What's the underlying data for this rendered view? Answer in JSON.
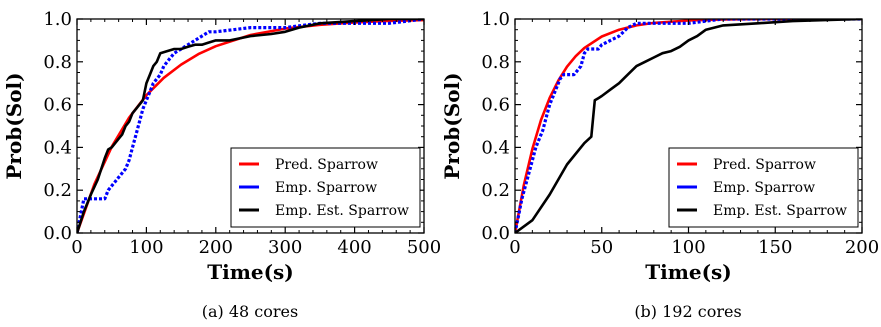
{
  "chart_data": [
    {
      "type": "line",
      "caption": "(a)  48 cores",
      "xlabel": "Time(s)",
      "ylabel": "Prob(Sol)",
      "xlim": [
        0,
        500
      ],
      "ylim": [
        0,
        1
      ],
      "xticks": [
        "0",
        "100",
        "200",
        "300",
        "400",
        "500"
      ],
      "yticks": [
        "0.0",
        "0.2",
        "0.4",
        "0.6",
        "0.8",
        "1.0"
      ],
      "legend_position": "bottom-right",
      "series": [
        {
          "name": "Pred. Sparrow",
          "color": "#ff0000",
          "style": "solid",
          "x": [
            0,
            25,
            50,
            75,
            100,
            125,
            150,
            175,
            200,
            250,
            300,
            350,
            400,
            450,
            500
          ],
          "y": [
            0,
            0.227,
            0.403,
            0.539,
            0.644,
            0.725,
            0.787,
            0.836,
            0.873,
            0.925,
            0.955,
            0.973,
            0.984,
            0.991,
            0.995
          ]
        },
        {
          "name": "Emp. Sparrow",
          "color": "#0000ff",
          "style": "dashed",
          "x": [
            0,
            10,
            15,
            40,
            45,
            50,
            55,
            60,
            65,
            70,
            75,
            80,
            85,
            90,
            95,
            100,
            105,
            110,
            115,
            120,
            125,
            130,
            135,
            140,
            150,
            160,
            170,
            180,
            190,
            200,
            250,
            300,
            350,
            400,
            450,
            500
          ],
          "y": [
            0,
            0.16,
            0.16,
            0.16,
            0.2,
            0.22,
            0.24,
            0.26,
            0.28,
            0.3,
            0.34,
            0.4,
            0.46,
            0.52,
            0.58,
            0.62,
            0.66,
            0.7,
            0.72,
            0.74,
            0.78,
            0.8,
            0.82,
            0.84,
            0.86,
            0.88,
            0.9,
            0.92,
            0.94,
            0.94,
            0.96,
            0.96,
            0.98,
            0.98,
            0.98,
            1.0
          ]
        },
        {
          "name": "Emp. Est. Sparrow",
          "color": "#000000",
          "style": "solid",
          "x": [
            0,
            10,
            20,
            30,
            40,
            45,
            50,
            55,
            60,
            65,
            70,
            75,
            80,
            85,
            90,
            95,
            100,
            105,
            110,
            115,
            120,
            130,
            140,
            150,
            160,
            170,
            180,
            190,
            200,
            220,
            250,
            280,
            300,
            320,
            350,
            400,
            450,
            500
          ],
          "y": [
            0,
            0.1,
            0.18,
            0.25,
            0.35,
            0.39,
            0.4,
            0.42,
            0.44,
            0.46,
            0.5,
            0.52,
            0.56,
            0.58,
            0.6,
            0.62,
            0.7,
            0.74,
            0.78,
            0.8,
            0.84,
            0.85,
            0.86,
            0.86,
            0.87,
            0.88,
            0.88,
            0.89,
            0.9,
            0.9,
            0.92,
            0.93,
            0.94,
            0.96,
            0.98,
            0.99,
            1.0,
            1.0
          ]
        }
      ]
    },
    {
      "type": "line",
      "caption": "(b)  192 cores",
      "xlabel": "Time(s)",
      "ylabel": "Prob(Sol)",
      "xlim": [
        0,
        200
      ],
      "ylim": [
        0,
        1
      ],
      "xticks": [
        "0",
        "50",
        "100",
        "150",
        "200"
      ],
      "yticks": [
        "0.0",
        "0.2",
        "0.4",
        "0.6",
        "0.8",
        "1.0"
      ],
      "legend_position": "bottom-right",
      "series": [
        {
          "name": "Pred. Sparrow",
          "color": "#ff0000",
          "style": "solid",
          "x": [
            0,
            5,
            10,
            15,
            20,
            25,
            30,
            35,
            40,
            50,
            60,
            70,
            80,
            100,
            120,
            150,
            200
          ],
          "y": [
            0,
            0.221,
            0.393,
            0.528,
            0.632,
            0.713,
            0.777,
            0.826,
            0.865,
            0.918,
            0.95,
            0.97,
            0.982,
            0.993,
            0.998,
            1.0,
            1.0
          ]
        },
        {
          "name": "Emp. Sparrow",
          "color": "#0000ff",
          "style": "dashed",
          "x": [
            0,
            2,
            4,
            6,
            8,
            10,
            12,
            14,
            16,
            18,
            20,
            22,
            24,
            26,
            28,
            30,
            32,
            34,
            36,
            38,
            40,
            42,
            44,
            46,
            48,
            50,
            55,
            60,
            65,
            70,
            80,
            100,
            120,
            150,
            200
          ],
          "y": [
            0,
            0.08,
            0.16,
            0.22,
            0.28,
            0.34,
            0.4,
            0.44,
            0.48,
            0.54,
            0.6,
            0.64,
            0.68,
            0.72,
            0.74,
            0.74,
            0.74,
            0.74,
            0.76,
            0.78,
            0.84,
            0.86,
            0.86,
            0.86,
            0.86,
            0.88,
            0.9,
            0.92,
            0.96,
            0.98,
            0.98,
            0.98,
            1.0,
            1.0,
            1.0
          ]
        },
        {
          "name": "Emp. Est. Sparrow",
          "color": "#000000",
          "style": "solid",
          "x": [
            0,
            10,
            20,
            30,
            40,
            44,
            46,
            48,
            50,
            55,
            60,
            65,
            70,
            75,
            80,
            85,
            90,
            95,
            100,
            105,
            110,
            120,
            140,
            160,
            200
          ],
          "y": [
            0,
            0.06,
            0.18,
            0.32,
            0.42,
            0.45,
            0.62,
            0.63,
            0.64,
            0.67,
            0.7,
            0.74,
            0.78,
            0.8,
            0.82,
            0.84,
            0.85,
            0.87,
            0.9,
            0.92,
            0.95,
            0.97,
            0.98,
            0.99,
            1.0
          ]
        }
      ]
    }
  ]
}
